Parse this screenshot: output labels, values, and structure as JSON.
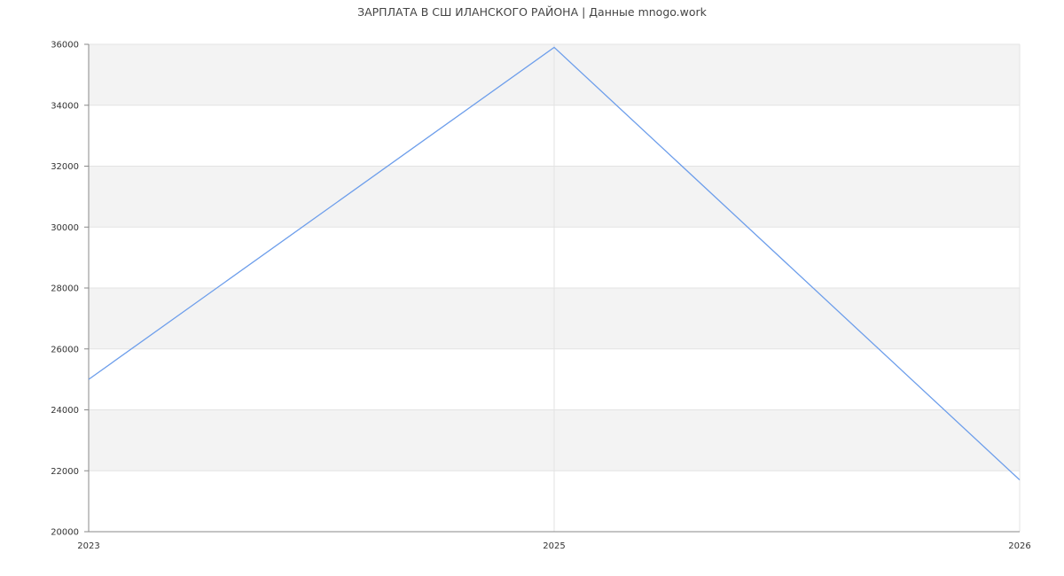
{
  "chart_data": {
    "type": "line",
    "title": "ЗАРПЛАТА В СШ ИЛАНСКОГО РАЙОНА | Данные mnogo.work",
    "xlabel": "",
    "ylabel": "",
    "categories": [
      "2023",
      "2025",
      "2026"
    ],
    "series": [
      {
        "values": [
          25000,
          35900,
          21700
        ],
        "color": "#6d9eeb"
      }
    ],
    "ylim": [
      20000,
      36000
    ],
    "yticks": [
      20000,
      22000,
      24000,
      26000,
      28000,
      30000,
      32000,
      34000,
      36000
    ],
    "grid": true,
    "band_color": "#f3f3f3"
  }
}
